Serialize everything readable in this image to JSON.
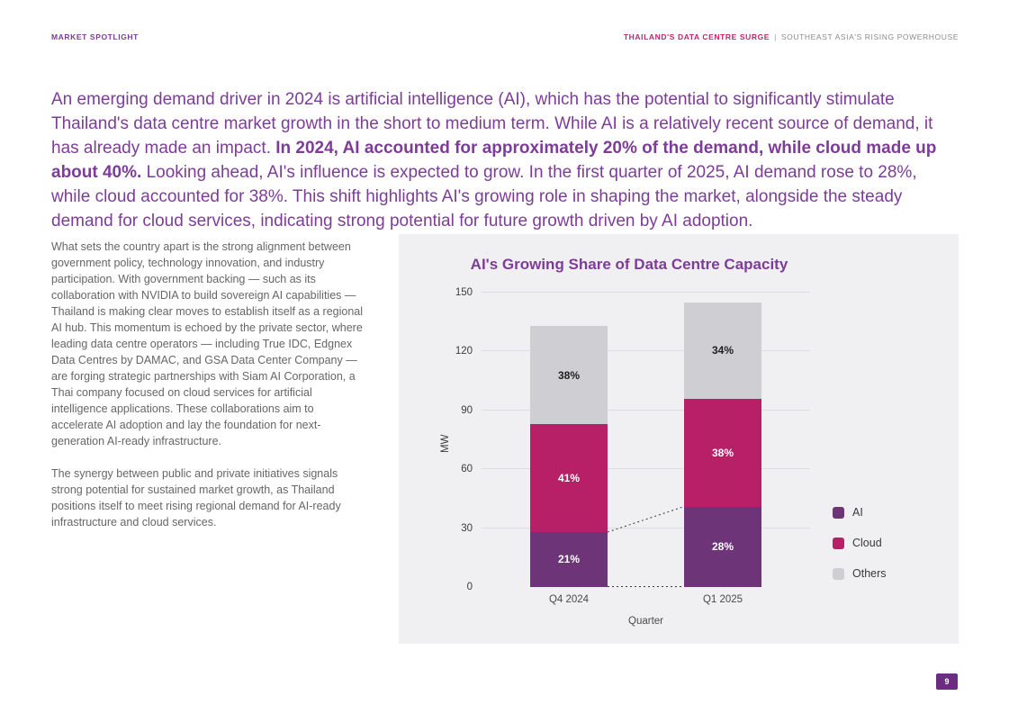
{
  "page": {
    "header": {
      "left": "MARKET SPOTLIGHT",
      "right_primary": "THAILAND'S DATA CENTRE SURGE",
      "right_separator": "|",
      "right_secondary": "SOUTHEAST ASIA'S RISING POWERHOUSE"
    },
    "intro": {
      "part1": "An emerging demand driver in 2024 is artificial intelligence (AI), which has the potential to significantly stimulate Thailand's data centre market growth in the short to medium term. While AI is a relatively recent source of demand, it has already made an impact. ",
      "part2_bold": "In 2024, AI accounted for approximately 20% of the demand, while cloud made up about 40%.",
      "part3": " Looking ahead, AI's influence is expected to grow. In the first quarter of 2025, AI demand rose to 28%, while cloud accounted for 38%. This shift highlights AI's growing role in shaping the market, alongside the steady demand for cloud services, indicating strong potential for future growth driven by AI adoption."
    },
    "left_column": {
      "paragraph1": "What sets the country apart is the strong alignment between government policy, technology innovation, and industry participation. With government backing — such as its collaboration with NVIDIA to build sovereign AI capabilities — Thailand is making clear moves to establish itself as a regional AI hub. This momentum is echoed by the private sector, where leading data centre operators — including True IDC, Edgnex Data Centres by DAMAC, and GSA Data Center Company — are forging strategic partnerships with Siam AI Corporation, a Thai company focused on cloud services for artificial intelligence applications. These collaborations aim to accelerate AI adoption and lay the foundation for next-generation AI-ready infrastructure.",
      "paragraph2": "The synergy between public and private initiatives signals strong potential for sustained market growth, as Thailand positions itself to meet rising regional demand for AI-ready infrastructure and cloud services."
    },
    "page_number": "9"
  },
  "chart_data": {
    "type": "bar",
    "stacked": true,
    "title": "AI's Growing Share of Data Centre Capacity",
    "xlabel": "Quarter",
    "ylabel": "MW",
    "ylim": [
      0,
      150
    ],
    "yticks": [
      0,
      30,
      60,
      90,
      120,
      150
    ],
    "categories": [
      "Q4 2024",
      "Q1 2025"
    ],
    "totals_mw": [
      133,
      145
    ],
    "series": [
      {
        "name": "AI",
        "color": "#6d3578",
        "values": [
          28,
          41
        ],
        "labels": [
          "21%",
          "28%"
        ],
        "label_color": "#ffffff"
      },
      {
        "name": "Cloud",
        "color": "#b72066",
        "values": [
          55,
          55
        ],
        "labels": [
          "41%",
          "38%"
        ],
        "label_color": "#ffffff"
      },
      {
        "name": "Others",
        "color": "#cfced3",
        "values": [
          50,
          49
        ],
        "labels": [
          "38%",
          "34%"
        ],
        "label_color": "#1f1f1f"
      }
    ],
    "legend": [
      "AI",
      "Cloud",
      "Others"
    ],
    "legend_position": "right",
    "grid": true,
    "connector_lines": "dotted, between AI segment tops and between bar baselines"
  },
  "palette": {
    "accent_purple": "#7d3c98",
    "accent_magenta": "#c0246d",
    "panel_bg": "#f0eff1",
    "body_text": "#666666",
    "connector": "#3a3a3a",
    "page_badge_bg": "#6b2e7e"
  }
}
